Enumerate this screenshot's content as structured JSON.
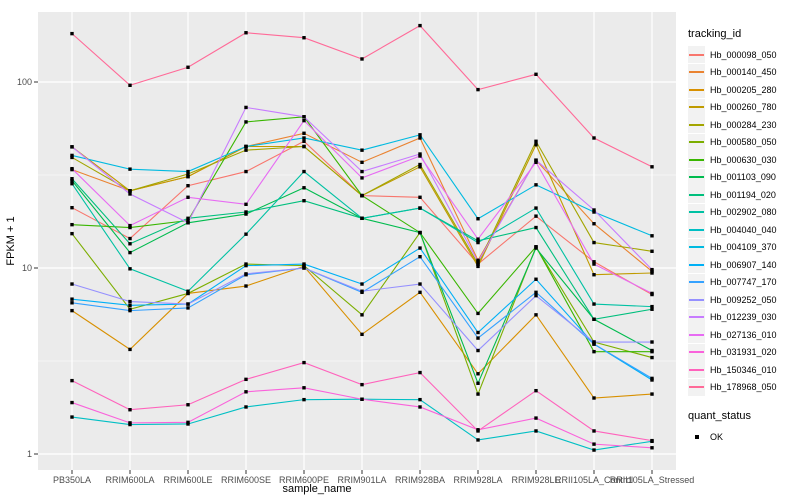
{
  "chart_data": {
    "type": "line",
    "title": "",
    "xlabel": "sample_name",
    "ylabel": "FPKM + 1",
    "y_scale": "log10",
    "y_ticks": [
      "1",
      "10",
      "100"
    ],
    "ylim": [
      0.9,
      260
    ],
    "grid": "on",
    "legend_position": "right",
    "categories": [
      "PB350LA",
      "RRIM600LA",
      "RRIM600LE",
      "RRIM600SE",
      "RRIM600PE",
      "RRIM901LA",
      "RRIM928BA",
      "RRIM928LA",
      "RRIM928LE",
      "RRII105LA_Control",
      "RRII105LA_Stressed"
    ],
    "series": [
      {
        "name": "Hb_000098_050",
        "color": "#F8766D",
        "values": [
          21.1,
          14.4,
          27.7,
          33,
          48,
          24.5,
          24,
          10.5,
          19,
          10.8,
          7.2
        ]
      },
      {
        "name": "Hb_000140_450",
        "color": "#EA8331",
        "values": [
          33.8,
          26,
          31,
          45,
          53,
          37,
          50,
          11,
          38,
          17.3,
          9.6
        ]
      },
      {
        "name": "Hb_000205_280",
        "color": "#D89000",
        "values": [
          5.9,
          3.65,
          7.3,
          8.0,
          10.2,
          4.4,
          7.4,
          2.7,
          5.6,
          2.0,
          2.1
        ]
      },
      {
        "name": "Hb_000260_780",
        "color": "#C09B00",
        "values": [
          44.8,
          26,
          31,
          45,
          45,
          24.5,
          35,
          10.2,
          46,
          9.2,
          9.4
        ]
      },
      {
        "name": "Hb_000284_230",
        "color": "#A3A500",
        "values": [
          39.3,
          26,
          32,
          43,
          45,
          24.5,
          36,
          10.5,
          48,
          13.7,
          12.3
        ]
      },
      {
        "name": "Hb_000580_050",
        "color": "#7CAE00",
        "values": [
          15.3,
          6.0,
          7.3,
          10.5,
          10.3,
          5.6,
          15.5,
          2.1,
          13,
          4.0,
          3.3
        ]
      },
      {
        "name": "Hb_000630_030",
        "color": "#39B600",
        "values": [
          17.1,
          16.5,
          18,
          61,
          65,
          24.5,
          15.5,
          5.7,
          13,
          3.55,
          3.55
        ]
      },
      {
        "name": "Hb_001103_090",
        "color": "#00BB4E",
        "values": [
          29.5,
          12.1,
          17.5,
          19.5,
          27,
          18.5,
          15.5,
          2.4,
          12.8,
          5.3,
          3.6
        ]
      },
      {
        "name": "Hb_001194_020",
        "color": "#00BF7D",
        "values": [
          30.2,
          13.5,
          18.5,
          20,
          23,
          18.5,
          21,
          14,
          16.5,
          5.3,
          6.0
        ]
      },
      {
        "name": "Hb_002902_080",
        "color": "#00C1A3",
        "values": [
          28.4,
          9.9,
          7.5,
          15.2,
          33,
          18.5,
          21,
          13.7,
          21,
          6.4,
          6.2
        ]
      },
      {
        "name": "Hb_004040_040",
        "color": "#00BFC4",
        "values": [
          1.58,
          1.44,
          1.45,
          1.79,
          1.96,
          1.97,
          1.96,
          1.19,
          1.33,
          1.05,
          1.17
        ]
      },
      {
        "name": "Hb_004109_370",
        "color": "#00BAE0",
        "values": [
          40.3,
          34,
          33,
          45,
          50,
          43,
          52,
          18.4,
          28,
          20,
          14.9
        ]
      },
      {
        "name": "Hb_006907_140",
        "color": "#00B0F6",
        "values": [
          6.8,
          6.3,
          6.4,
          10.3,
          10.5,
          8.2,
          12.8,
          4.5,
          8.7,
          3.9,
          2.5
        ]
      },
      {
        "name": "Hb_007747_170",
        "color": "#35A2FF",
        "values": [
          6.5,
          5.9,
          6.1,
          9.2,
          10.0,
          7.4,
          11.5,
          4.2,
          7.4,
          3.9,
          2.55
        ]
      },
      {
        "name": "Hb_009252_050",
        "color": "#9590FF",
        "values": [
          8.2,
          6.6,
          6.4,
          9.3,
          10.0,
          7.5,
          8.2,
          3.6,
          7.1,
          4.0,
          4.0
        ]
      },
      {
        "name": "Hb_012239_030",
        "color": "#C77CFF",
        "values": [
          44.8,
          25,
          17.5,
          73,
          65,
          33,
          41,
          10.8,
          38,
          20.5,
          9.8
        ]
      },
      {
        "name": "Hb_027136_010",
        "color": "#E76BF3",
        "values": [
          34.2,
          16.9,
          24,
          22,
          62,
          30.5,
          40,
          14.3,
          37,
          10.5,
          7.3
        ]
      },
      {
        "name": "Hb_031931_020",
        "color": "#FA62DB",
        "values": [
          1.89,
          1.47,
          1.48,
          2.16,
          2.27,
          1.97,
          1.79,
          1.35,
          1.56,
          1.13,
          1.08
        ]
      },
      {
        "name": "Hb_150346_010",
        "color": "#FF62BC",
        "values": [
          2.48,
          1.73,
          1.84,
          2.52,
          3.1,
          2.36,
          2.74,
          1.33,
          2.19,
          1.33,
          1.18
        ]
      },
      {
        "name": "Hb_178968_050",
        "color": "#FF6A98",
        "values": [
          182,
          96,
          120,
          184,
          173,
          133,
          201,
          91,
          110,
          50,
          35
        ]
      }
    ],
    "legend": {
      "tracking_title": "tracking_id",
      "quant_title": "quant_status",
      "quant_value": "OK"
    },
    "style_colors": {
      "panel_bg": "#EBEBEB",
      "grid_major": "#FFFFFF",
      "grid_minor": "#FFFFFF",
      "tick_text": "#4D4D4D",
      "tick_mark": "#333333",
      "point": "#000000",
      "legend_key_bg": "#F2F2F2"
    }
  }
}
